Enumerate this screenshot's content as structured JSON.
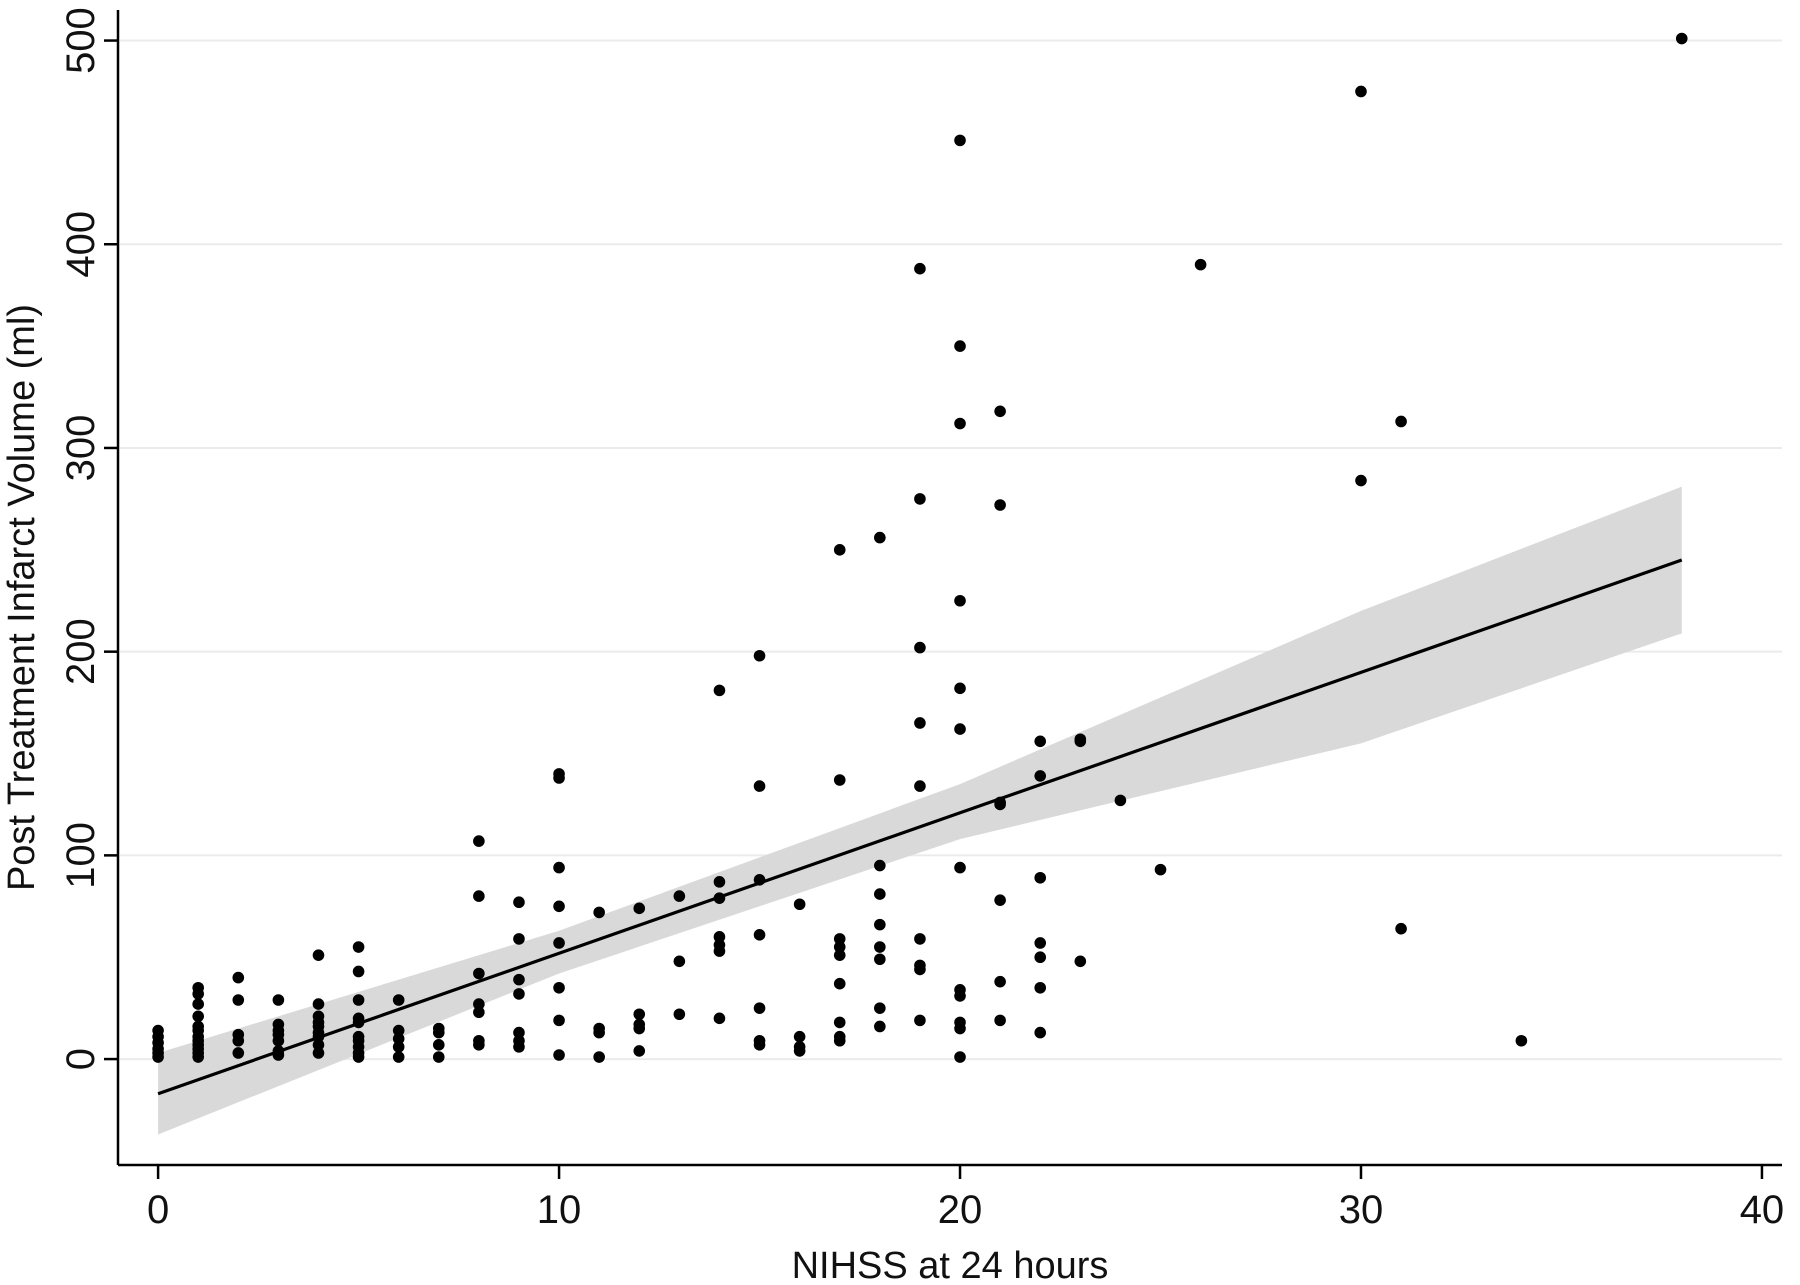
{
  "chart_data": {
    "type": "scatter",
    "title": "",
    "xlabel": "NIHSS at 24 hours",
    "ylabel": "Post Treatment Infarct Volume (ml)",
    "xlim": [
      -1,
      40.5
    ],
    "ylim": [
      -52,
      515
    ],
    "x_ticks": [
      0,
      10,
      20,
      30,
      40
    ],
    "y_ticks": [
      0,
      100,
      200,
      300,
      400,
      500
    ],
    "grid": "horizontal",
    "legend": "none",
    "colors": {
      "points": "#000000",
      "fit_line": "#000000",
      "confidence_band": "#d9d9d9",
      "grid": "#ebebeb",
      "axis": "#000000"
    },
    "series": [
      {
        "type": "scatter",
        "points": [
          [
            0,
            1
          ],
          [
            0,
            3
          ],
          [
            0,
            5
          ],
          [
            0,
            8
          ],
          [
            0,
            11
          ],
          [
            0,
            14
          ],
          [
            1,
            1
          ],
          [
            1,
            3
          ],
          [
            1,
            5
          ],
          [
            1,
            7
          ],
          [
            1,
            9
          ],
          [
            1,
            11
          ],
          [
            1,
            14
          ],
          [
            1,
            16
          ],
          [
            1,
            21
          ],
          [
            1,
            27
          ],
          [
            1,
            32
          ],
          [
            1,
            35
          ],
          [
            2,
            3
          ],
          [
            2,
            9
          ],
          [
            2,
            12
          ],
          [
            2,
            29
          ],
          [
            2,
            40
          ],
          [
            3,
            2
          ],
          [
            3,
            4
          ],
          [
            3,
            9
          ],
          [
            3,
            12
          ],
          [
            3,
            14
          ],
          [
            3,
            17
          ],
          [
            3,
            29
          ],
          [
            4,
            3
          ],
          [
            4,
            7
          ],
          [
            4,
            11
          ],
          [
            4,
            13
          ],
          [
            4,
            16
          ],
          [
            4,
            18
          ],
          [
            4,
            21
          ],
          [
            4,
            27
          ],
          [
            4,
            51
          ],
          [
            5,
            1
          ],
          [
            5,
            3
          ],
          [
            5,
            6
          ],
          [
            5,
            9
          ],
          [
            5,
            11
          ],
          [
            5,
            18
          ],
          [
            5,
            20
          ],
          [
            5,
            29
          ],
          [
            5,
            43
          ],
          [
            5,
            55
          ],
          [
            6,
            1
          ],
          [
            6,
            6
          ],
          [
            6,
            10
          ],
          [
            6,
            14
          ],
          [
            6,
            29
          ],
          [
            7,
            1
          ],
          [
            7,
            7
          ],
          [
            7,
            13
          ],
          [
            7,
            15
          ],
          [
            8,
            7
          ],
          [
            8,
            9
          ],
          [
            8,
            23
          ],
          [
            8,
            27
          ],
          [
            8,
            42
          ],
          [
            8,
            80
          ],
          [
            8,
            107
          ],
          [
            9,
            6
          ],
          [
            9,
            9
          ],
          [
            9,
            13
          ],
          [
            9,
            32
          ],
          [
            9,
            39
          ],
          [
            9,
            59
          ],
          [
            9,
            77
          ],
          [
            10,
            2
          ],
          [
            10,
            19
          ],
          [
            10,
            35
          ],
          [
            10,
            57
          ],
          [
            10,
            75
          ],
          [
            10,
            94
          ],
          [
            10,
            138
          ],
          [
            10,
            140
          ],
          [
            11,
            1
          ],
          [
            11,
            13
          ],
          [
            11,
            15
          ],
          [
            11,
            72
          ],
          [
            12,
            4
          ],
          [
            12,
            15
          ],
          [
            12,
            17
          ],
          [
            12,
            22
          ],
          [
            12,
            74
          ],
          [
            13,
            22
          ],
          [
            13,
            48
          ],
          [
            13,
            80
          ],
          [
            14,
            20
          ],
          [
            14,
            53
          ],
          [
            14,
            56
          ],
          [
            14,
            60
          ],
          [
            14,
            79
          ],
          [
            14,
            87
          ],
          [
            14,
            181
          ],
          [
            15,
            7
          ],
          [
            15,
            9
          ],
          [
            15,
            25
          ],
          [
            15,
            61
          ],
          [
            15,
            88
          ],
          [
            15,
            134
          ],
          [
            15,
            198
          ],
          [
            16,
            4
          ],
          [
            16,
            6
          ],
          [
            16,
            11
          ],
          [
            16,
            76
          ],
          [
            17,
            9
          ],
          [
            17,
            11
          ],
          [
            17,
            18
          ],
          [
            17,
            37
          ],
          [
            17,
            51
          ],
          [
            17,
            55
          ],
          [
            17,
            59
          ],
          [
            17,
            137
          ],
          [
            17,
            250
          ],
          [
            18,
            16
          ],
          [
            18,
            25
          ],
          [
            18,
            49
          ],
          [
            18,
            55
          ],
          [
            18,
            66
          ],
          [
            18,
            81
          ],
          [
            18,
            95
          ],
          [
            18,
            256
          ],
          [
            19,
            19
          ],
          [
            19,
            44
          ],
          [
            19,
            46
          ],
          [
            19,
            59
          ],
          [
            19,
            134
          ],
          [
            19,
            165
          ],
          [
            19,
            202
          ],
          [
            19,
            275
          ],
          [
            19,
            388
          ],
          [
            20,
            1
          ],
          [
            20,
            15
          ],
          [
            20,
            18
          ],
          [
            20,
            31
          ],
          [
            20,
            34
          ],
          [
            20,
            94
          ],
          [
            20,
            162
          ],
          [
            20,
            182
          ],
          [
            20,
            225
          ],
          [
            20,
            312
          ],
          [
            20,
            350
          ],
          [
            20,
            451
          ],
          [
            21,
            19
          ],
          [
            21,
            38
          ],
          [
            21,
            78
          ],
          [
            21,
            125
          ],
          [
            21,
            126
          ],
          [
            21,
            272
          ],
          [
            21,
            318
          ],
          [
            22,
            13
          ],
          [
            22,
            35
          ],
          [
            22,
            50
          ],
          [
            22,
            57
          ],
          [
            22,
            89
          ],
          [
            22,
            139
          ],
          [
            22,
            156
          ],
          [
            23,
            48
          ],
          [
            23,
            156
          ],
          [
            23,
            157
          ],
          [
            24,
            127
          ],
          [
            25,
            93
          ],
          [
            26,
            390
          ],
          [
            30,
            284
          ],
          [
            30,
            475
          ],
          [
            31,
            64
          ],
          [
            31,
            313
          ],
          [
            34,
            9
          ],
          [
            38,
            501
          ]
        ]
      },
      {
        "type": "line",
        "kind": "linear fit",
        "x": [
          0,
          38
        ],
        "y": [
          -17,
          245
        ]
      },
      {
        "type": "area",
        "kind": "95% confidence band",
        "x": [
          0,
          10,
          20,
          30,
          38
        ],
        "lower": [
          -37,
          42,
          108,
          155,
          209
        ],
        "upper": [
          3,
          63,
          135,
          220,
          281
        ]
      }
    ]
  }
}
